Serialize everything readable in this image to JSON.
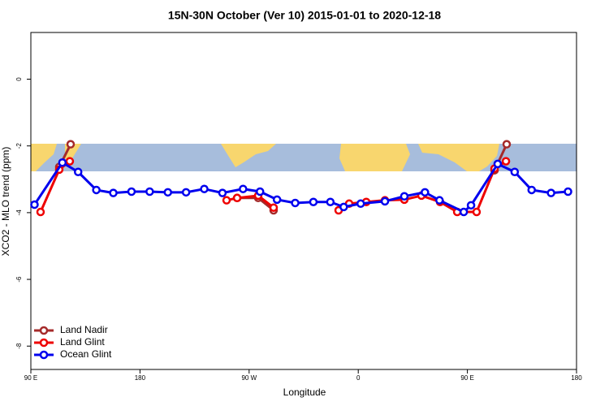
{
  "chart_data": {
    "type": "line",
    "title": "15N-30N October (Ver 10)   2015-01-01 to 2020-12-18",
    "x_label": "Longitude",
    "y_label": "XCO2 - MLO trend (ppm)",
    "xlim": [
      90,
      540
    ],
    "ylim": [
      -8.7,
      1.4
    ],
    "xticks": [
      {
        "value": 90,
        "label": "90 E"
      },
      180,
      {
        "value": 270,
        "label": "90 W"
      },
      {
        "value": 360,
        "label": "0"
      },
      {
        "value": 450,
        "label": "90 E"
      },
      {
        "value": 540,
        "label": "180"
      }
    ],
    "yticks": [
      0,
      -2,
      -4,
      -6,
      -8
    ],
    "legend": "bottom-left",
    "series": [
      {
        "name": "Land Nadir",
        "color": "#a52a2a",
        "x": [
          113.4,
          122.8,
          null,
          260.1,
          277.5,
          290.2,
          null,
          472.4,
          482.4
        ],
        "values": [
          -2.63,
          -1.95,
          null,
          -3.56,
          -3.56,
          -3.93,
          null,
          -2.73,
          -1.95
        ]
      },
      {
        "name": "Land Glint",
        "color": "#ee0000",
        "x": [
          98,
          113.4,
          122.1,
          null,
          251.4,
          260.1,
          277.5,
          290.2,
          null,
          343.8,
          352.5,
          366.6,
          382,
          398,
          412.1,
          427.5,
          441.6,
          457.6,
          472.4,
          481.8
        ],
        "values": [
          -3.98,
          -2.71,
          -2.46,
          null,
          -3.63,
          -3.56,
          -3.49,
          -3.85,
          null,
          -3.93,
          -3.73,
          -3.68,
          -3.63,
          -3.61,
          -3.49,
          -3.68,
          -3.98,
          -3.98,
          -2.68,
          -2.46
        ]
      },
      {
        "name": "Ocean Glint",
        "color": "#0000ee",
        "x": [
          93,
          116,
          129,
          144,
          158,
          173,
          188,
          203,
          218,
          233,
          248,
          265,
          279,
          293,
          308,
          323,
          337,
          348,
          362,
          382,
          398,
          415,
          427,
          447,
          453,
          475,
          489,
          503,
          519,
          533
        ],
        "values": [
          -3.76,
          -2.5,
          -2.78,
          -3.32,
          -3.41,
          -3.37,
          -3.37,
          -3.39,
          -3.39,
          -3.29,
          -3.41,
          -3.29,
          -3.37,
          -3.61,
          -3.71,
          -3.68,
          -3.68,
          -3.83,
          -3.73,
          -3.66,
          -3.51,
          -3.39,
          -3.63,
          -3.98,
          -3.78,
          -2.54,
          -2.78,
          -3.32,
          -3.41,
          -3.37
        ]
      }
    ]
  }
}
